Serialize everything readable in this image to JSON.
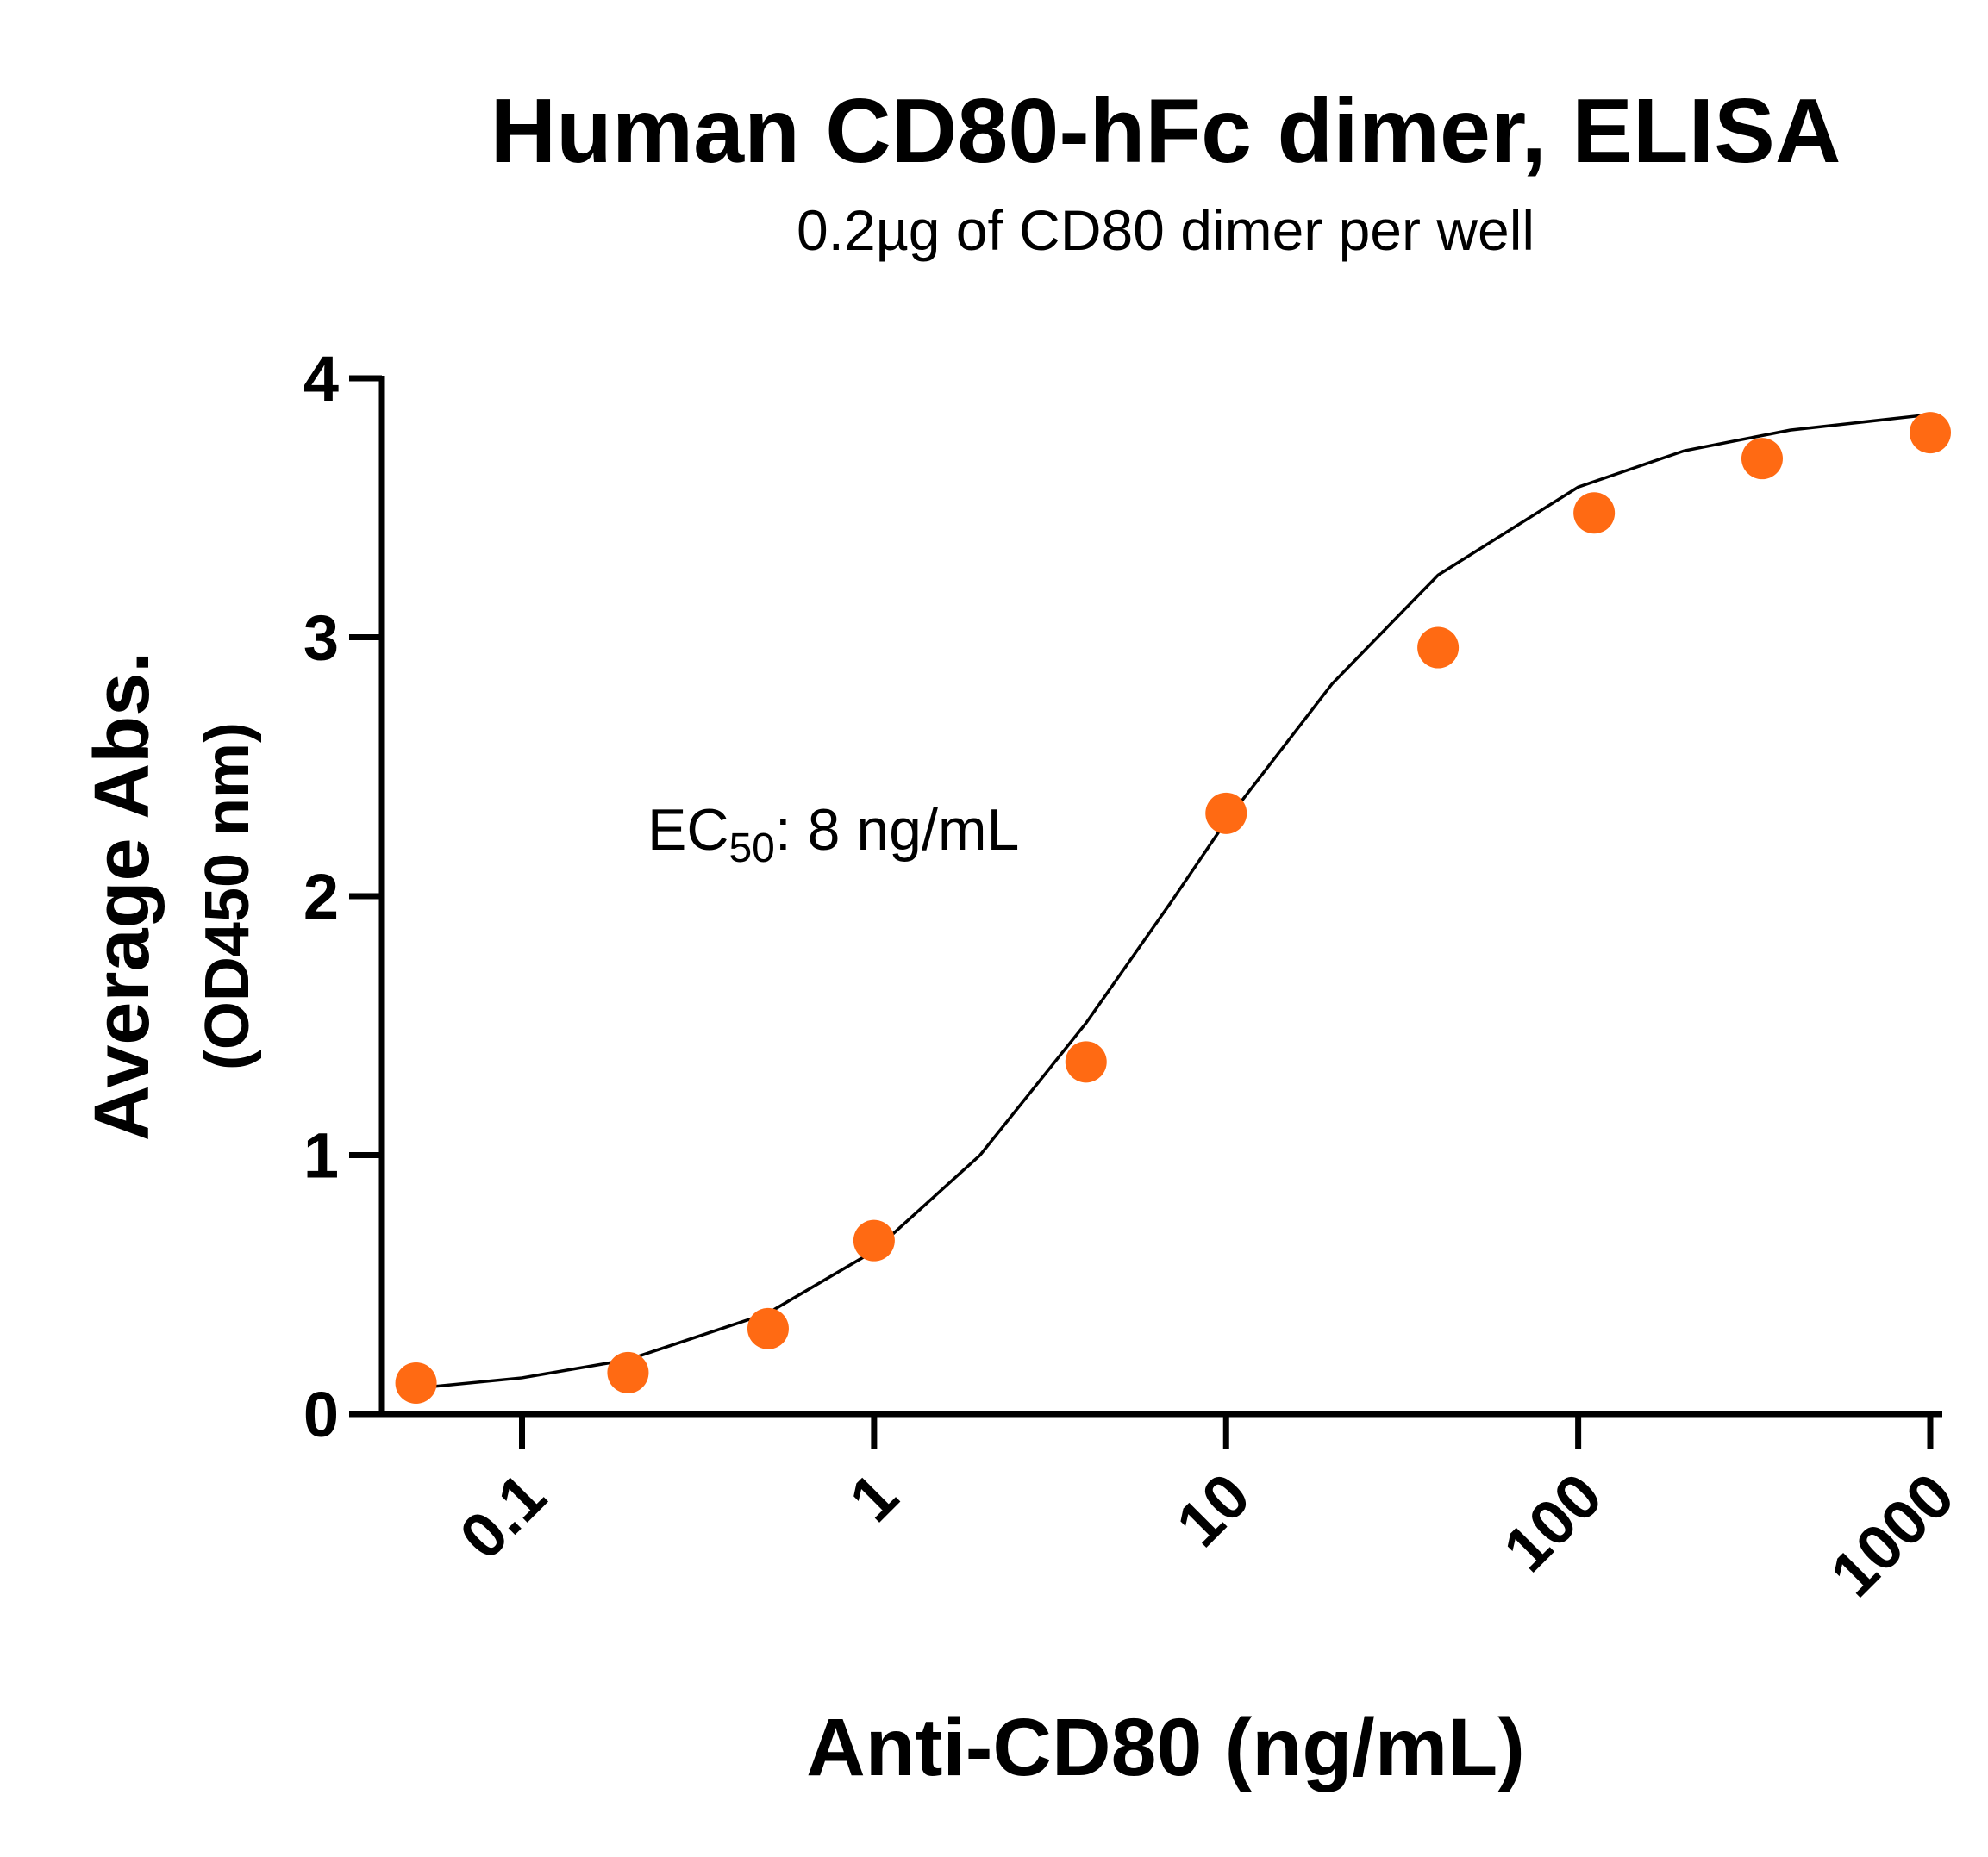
{
  "chart_data": {
    "type": "scatter",
    "title": "Human CD80-hFc dimer, ELISA",
    "subtitle": "0.2µg of CD80 dimer per well",
    "y_label": "Average Abs.",
    "y_label_units": "(OD450 nm)",
    "x_label": "Anti-CD80  (ng/mL)",
    "annotation": {
      "text": "EC",
      "subscript": "50",
      "rest": ": 8 ng/mL"
    },
    "x_log": true,
    "xlim": [
      0.04,
      1000
    ],
    "xticks": [
      0.1,
      1,
      10,
      100,
      1000
    ],
    "ylim": [
      0,
      4
    ],
    "yticks": [
      0,
      1,
      2,
      3,
      4
    ],
    "series": [
      {
        "color": "#ff6a13",
        "x": [
          0.05,
          0.2,
          0.5,
          1,
          4,
          10,
          40,
          111,
          333,
          1000
        ],
        "values": [
          0.12,
          0.16,
          0.33,
          0.67,
          1.36,
          2.32,
          2.96,
          3.48,
          3.69,
          3.79
        ]
      }
    ],
    "curve": {
      "color": "#000000",
      "x": [
        0.05,
        0.1,
        0.2,
        0.5,
        1,
        2,
        4,
        7,
        10,
        20,
        40,
        100,
        200,
        400,
        1000
      ],
      "values": [
        0.1,
        0.14,
        0.21,
        0.39,
        0.63,
        1.0,
        1.51,
        1.98,
        2.29,
        2.82,
        3.24,
        3.58,
        3.72,
        3.8,
        3.86
      ]
    }
  }
}
